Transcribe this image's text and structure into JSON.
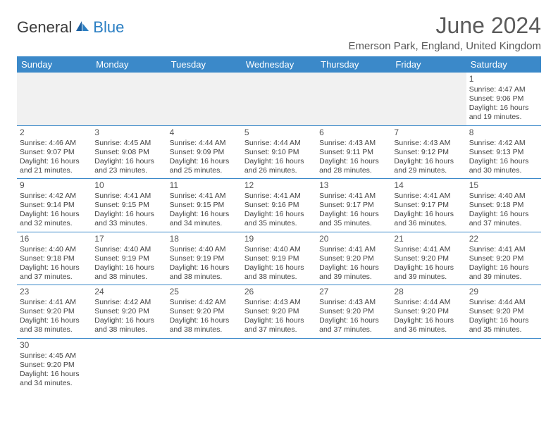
{
  "logo": {
    "general": "General",
    "blue": "Blue"
  },
  "title": "June 2024",
  "location": "Emerson Park, England, United Kingdom",
  "colors": {
    "header_bg": "#3b89c9",
    "header_text": "#ffffff",
    "row_divider": "#3b89c9",
    "first_row_bg": "#f1f1f1",
    "text": "#444444",
    "title_text": "#5a5a5a",
    "logo_general": "#3b3b3b",
    "logo_blue": "#2b7fc3"
  },
  "day_headers": [
    "Sunday",
    "Monday",
    "Tuesday",
    "Wednesday",
    "Thursday",
    "Friday",
    "Saturday"
  ],
  "weeks": [
    [
      null,
      null,
      null,
      null,
      null,
      null,
      {
        "n": "1",
        "sr": "Sunrise: 4:47 AM",
        "ss": "Sunset: 9:06 PM",
        "d1": "Daylight: 16 hours",
        "d2": "and 19 minutes."
      }
    ],
    [
      {
        "n": "2",
        "sr": "Sunrise: 4:46 AM",
        "ss": "Sunset: 9:07 PM",
        "d1": "Daylight: 16 hours",
        "d2": "and 21 minutes."
      },
      {
        "n": "3",
        "sr": "Sunrise: 4:45 AM",
        "ss": "Sunset: 9:08 PM",
        "d1": "Daylight: 16 hours",
        "d2": "and 23 minutes."
      },
      {
        "n": "4",
        "sr": "Sunrise: 4:44 AM",
        "ss": "Sunset: 9:09 PM",
        "d1": "Daylight: 16 hours",
        "d2": "and 25 minutes."
      },
      {
        "n": "5",
        "sr": "Sunrise: 4:44 AM",
        "ss": "Sunset: 9:10 PM",
        "d1": "Daylight: 16 hours",
        "d2": "and 26 minutes."
      },
      {
        "n": "6",
        "sr": "Sunrise: 4:43 AM",
        "ss": "Sunset: 9:11 PM",
        "d1": "Daylight: 16 hours",
        "d2": "and 28 minutes."
      },
      {
        "n": "7",
        "sr": "Sunrise: 4:43 AM",
        "ss": "Sunset: 9:12 PM",
        "d1": "Daylight: 16 hours",
        "d2": "and 29 minutes."
      },
      {
        "n": "8",
        "sr": "Sunrise: 4:42 AM",
        "ss": "Sunset: 9:13 PM",
        "d1": "Daylight: 16 hours",
        "d2": "and 30 minutes."
      }
    ],
    [
      {
        "n": "9",
        "sr": "Sunrise: 4:42 AM",
        "ss": "Sunset: 9:14 PM",
        "d1": "Daylight: 16 hours",
        "d2": "and 32 minutes."
      },
      {
        "n": "10",
        "sr": "Sunrise: 4:41 AM",
        "ss": "Sunset: 9:15 PM",
        "d1": "Daylight: 16 hours",
        "d2": "and 33 minutes."
      },
      {
        "n": "11",
        "sr": "Sunrise: 4:41 AM",
        "ss": "Sunset: 9:15 PM",
        "d1": "Daylight: 16 hours",
        "d2": "and 34 minutes."
      },
      {
        "n": "12",
        "sr": "Sunrise: 4:41 AM",
        "ss": "Sunset: 9:16 PM",
        "d1": "Daylight: 16 hours",
        "d2": "and 35 minutes."
      },
      {
        "n": "13",
        "sr": "Sunrise: 4:41 AM",
        "ss": "Sunset: 9:17 PM",
        "d1": "Daylight: 16 hours",
        "d2": "and 35 minutes."
      },
      {
        "n": "14",
        "sr": "Sunrise: 4:41 AM",
        "ss": "Sunset: 9:17 PM",
        "d1": "Daylight: 16 hours",
        "d2": "and 36 minutes."
      },
      {
        "n": "15",
        "sr": "Sunrise: 4:40 AM",
        "ss": "Sunset: 9:18 PM",
        "d1": "Daylight: 16 hours",
        "d2": "and 37 minutes."
      }
    ],
    [
      {
        "n": "16",
        "sr": "Sunrise: 4:40 AM",
        "ss": "Sunset: 9:18 PM",
        "d1": "Daylight: 16 hours",
        "d2": "and 37 minutes."
      },
      {
        "n": "17",
        "sr": "Sunrise: 4:40 AM",
        "ss": "Sunset: 9:19 PM",
        "d1": "Daylight: 16 hours",
        "d2": "and 38 minutes."
      },
      {
        "n": "18",
        "sr": "Sunrise: 4:40 AM",
        "ss": "Sunset: 9:19 PM",
        "d1": "Daylight: 16 hours",
        "d2": "and 38 minutes."
      },
      {
        "n": "19",
        "sr": "Sunrise: 4:40 AM",
        "ss": "Sunset: 9:19 PM",
        "d1": "Daylight: 16 hours",
        "d2": "and 38 minutes."
      },
      {
        "n": "20",
        "sr": "Sunrise: 4:41 AM",
        "ss": "Sunset: 9:20 PM",
        "d1": "Daylight: 16 hours",
        "d2": "and 39 minutes."
      },
      {
        "n": "21",
        "sr": "Sunrise: 4:41 AM",
        "ss": "Sunset: 9:20 PM",
        "d1": "Daylight: 16 hours",
        "d2": "and 39 minutes."
      },
      {
        "n": "22",
        "sr": "Sunrise: 4:41 AM",
        "ss": "Sunset: 9:20 PM",
        "d1": "Daylight: 16 hours",
        "d2": "and 39 minutes."
      }
    ],
    [
      {
        "n": "23",
        "sr": "Sunrise: 4:41 AM",
        "ss": "Sunset: 9:20 PM",
        "d1": "Daylight: 16 hours",
        "d2": "and 38 minutes."
      },
      {
        "n": "24",
        "sr": "Sunrise: 4:42 AM",
        "ss": "Sunset: 9:20 PM",
        "d1": "Daylight: 16 hours",
        "d2": "and 38 minutes."
      },
      {
        "n": "25",
        "sr": "Sunrise: 4:42 AM",
        "ss": "Sunset: 9:20 PM",
        "d1": "Daylight: 16 hours",
        "d2": "and 38 minutes."
      },
      {
        "n": "26",
        "sr": "Sunrise: 4:43 AM",
        "ss": "Sunset: 9:20 PM",
        "d1": "Daylight: 16 hours",
        "d2": "and 37 minutes."
      },
      {
        "n": "27",
        "sr": "Sunrise: 4:43 AM",
        "ss": "Sunset: 9:20 PM",
        "d1": "Daylight: 16 hours",
        "d2": "and 37 minutes."
      },
      {
        "n": "28",
        "sr": "Sunrise: 4:44 AM",
        "ss": "Sunset: 9:20 PM",
        "d1": "Daylight: 16 hours",
        "d2": "and 36 minutes."
      },
      {
        "n": "29",
        "sr": "Sunrise: 4:44 AM",
        "ss": "Sunset: 9:20 PM",
        "d1": "Daylight: 16 hours",
        "d2": "and 35 minutes."
      }
    ],
    [
      {
        "n": "30",
        "sr": "Sunrise: 4:45 AM",
        "ss": "Sunset: 9:20 PM",
        "d1": "Daylight: 16 hours",
        "d2": "and 34 minutes."
      },
      null,
      null,
      null,
      null,
      null,
      null
    ]
  ]
}
